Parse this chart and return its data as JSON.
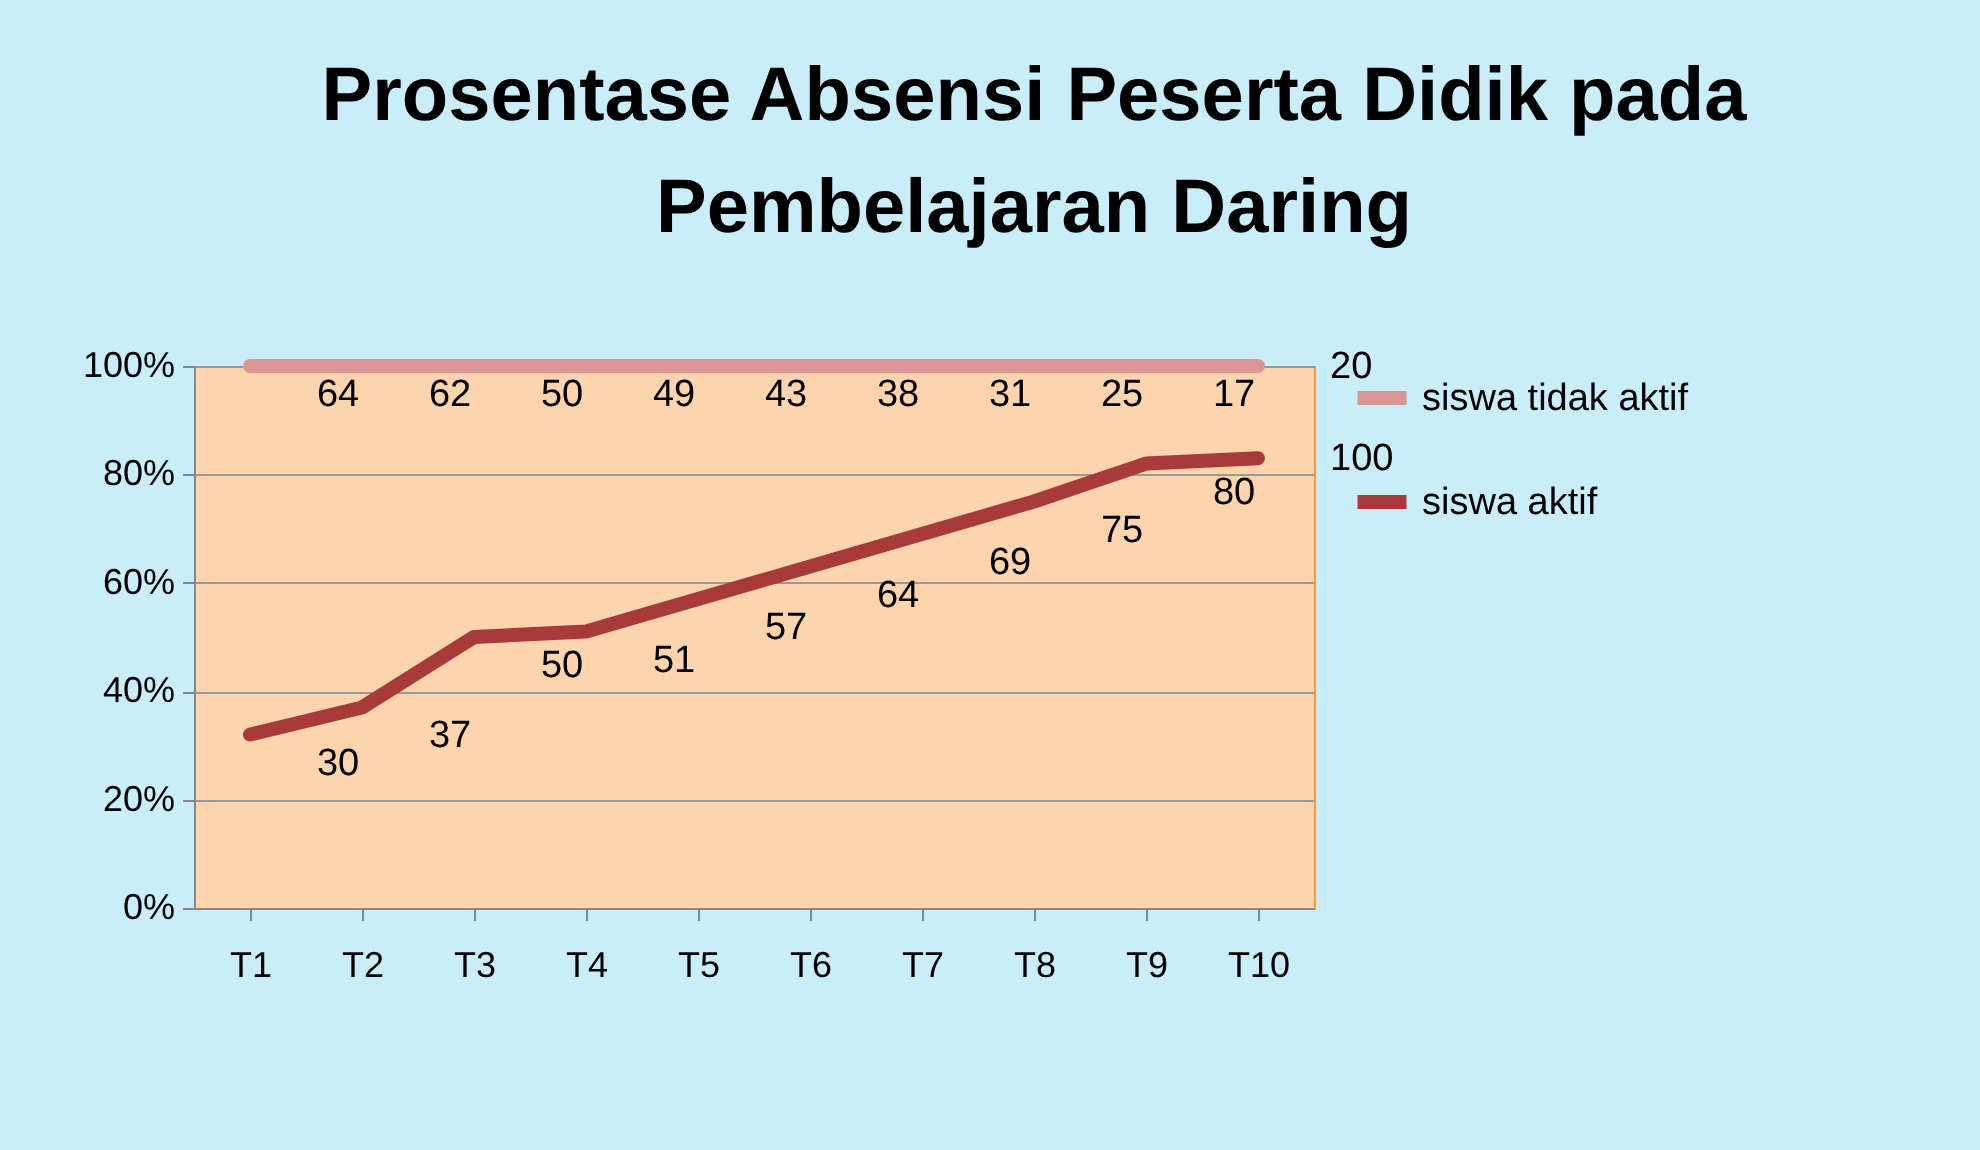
{
  "chart_data": {
    "type": "line",
    "title": "Prosentase Absensi Peserta Didik pada Pembelajaran Daring",
    "categories": [
      "T1",
      "T2",
      "T3",
      "T4",
      "T5",
      "T6",
      "T7",
      "T8",
      "T9",
      "T10"
    ],
    "series": [
      {
        "name": "siswa tidak aktif",
        "color": "#d99694",
        "values": [
          100,
          100,
          100,
          100,
          100,
          100,
          100,
          100,
          100,
          100
        ]
      },
      {
        "name": "siswa aktif",
        "color": "#a83a3a",
        "values": [
          32,
          37,
          50,
          51,
          57,
          63,
          69,
          75,
          82,
          83
        ]
      }
    ],
    "annotations": [
      "64",
      "62",
      "50",
      "49",
      "43",
      "38",
      "31",
      "25",
      "17",
      "20",
      "30",
      "37",
      "50",
      "51",
      "57",
      "64",
      "69",
      "75",
      "80",
      "100"
    ],
    "ylim": [
      0,
      100
    ],
    "yticks": [
      {
        "value": 0,
        "label": "0%"
      },
      {
        "value": 20,
        "label": "20%"
      },
      {
        "value": 40,
        "label": "40%"
      },
      {
        "value": 60,
        "label": "60%"
      },
      {
        "value": 80,
        "label": "80%"
      },
      {
        "value": 100,
        "label": "100%"
      }
    ],
    "grid": "y",
    "legend": "right"
  }
}
